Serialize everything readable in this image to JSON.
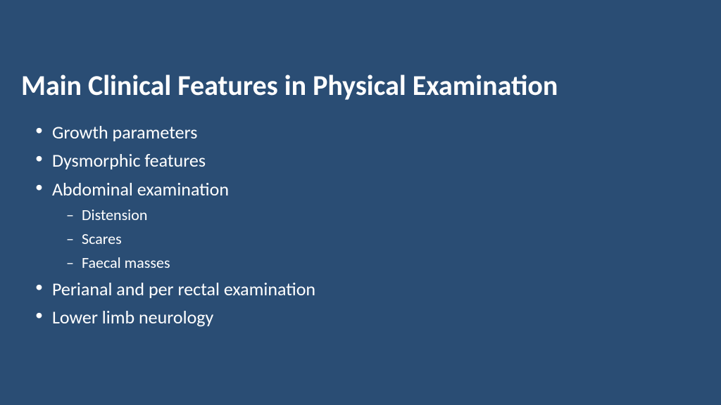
{
  "slide": {
    "background_color": "#2a4d74",
    "text_color": "#ffffff",
    "title": "Main Clinical Features in Physical Examination",
    "title_fontsize": 40,
    "title_fontweight": 700,
    "body_fontsize": 26,
    "sub_fontsize": 22,
    "bullets": [
      {
        "text": "Growth parameters"
      },
      {
        "text": "Dysmorphic features"
      },
      {
        "text": "Abdominal examination",
        "sub": [
          {
            "text": "Distension"
          },
          {
            "text": "Scares"
          },
          {
            "text": "Faecal masses"
          }
        ]
      },
      {
        "text": "Perianal and per rectal examination"
      },
      {
        "text": "Lower limb neurology"
      }
    ]
  }
}
